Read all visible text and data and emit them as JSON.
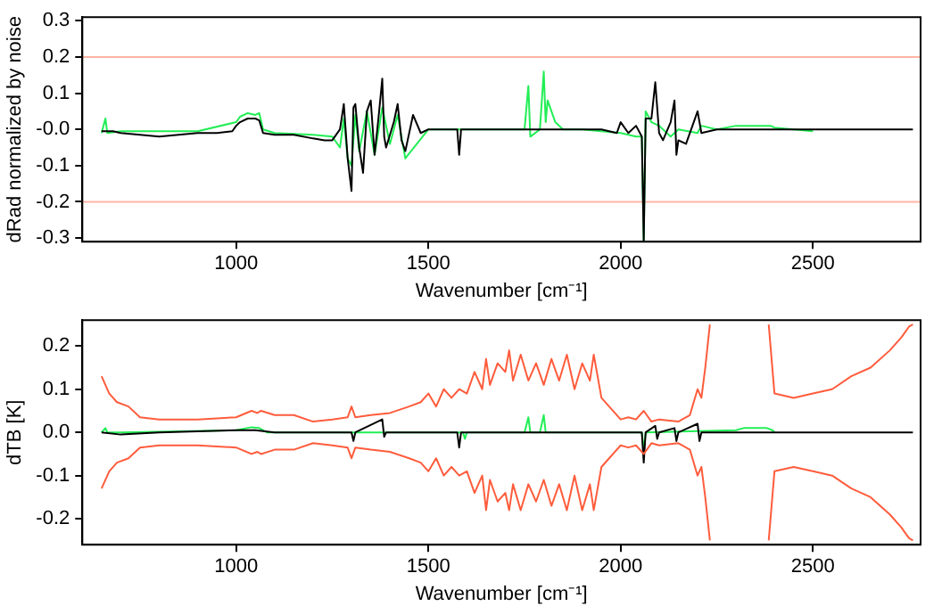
{
  "chart_data": [
    {
      "type": "line",
      "xlabel": "Wavenumber [cm⁻¹]",
      "ylabel": "dRad normalized by noise",
      "xlim": [
        600,
        2780
      ],
      "xticks": [
        1000,
        1500,
        2000,
        2500
      ],
      "ylim": [
        -0.31,
        0.31
      ],
      "yticks": [
        -0.3,
        -0.2,
        -0.1,
        {
          "value": 0,
          "label": "-0.0"
        },
        0.1,
        0.2,
        0.3
      ],
      "ref_lines": [
        {
          "axis": "y",
          "value": 0.2,
          "color": "#ffb4a4"
        },
        {
          "axis": "y",
          "value": -0.2,
          "color": "#ffb4a4"
        }
      ],
      "series": [
        {
          "color": "#000000",
          "x": [
            650,
            680,
            700,
            750,
            800,
            850,
            900,
            950,
            990,
            1000,
            1010,
            1030,
            1050,
            1060,
            1070,
            1100,
            1150,
            1200,
            1230,
            1250,
            1270,
            1280,
            1290,
            1300,
            1305,
            1310,
            1320,
            1330,
            1340,
            1350,
            1360,
            1370,
            1380,
            1385,
            1390,
            1410,
            1420,
            1430,
            1440,
            1460,
            1480,
            1500,
            1550,
            1575,
            1580,
            1585,
            1600,
            1700,
            1800,
            1900,
            1950,
            1990,
            2000,
            2020,
            2040,
            2055,
            2060,
            2065,
            2080,
            2090,
            2100,
            2110,
            2130,
            2140,
            2145,
            2150,
            2170,
            2190,
            2200,
            2210,
            2250,
            2300,
            2400,
            2500,
            2600,
            2700,
            2760
          ],
          "values": [
            -0.005,
            -0.005,
            -0.01,
            -0.015,
            -0.02,
            -0.015,
            -0.01,
            -0.01,
            -0.005,
            0.01,
            0.02,
            0.03,
            0.03,
            0.025,
            -0.01,
            -0.015,
            -0.015,
            -0.025,
            -0.03,
            -0.03,
            0.0,
            0.07,
            -0.08,
            -0.17,
            0.06,
            0.07,
            -0.05,
            -0.12,
            0.05,
            0.08,
            -0.07,
            0.03,
            0.14,
            -0.02,
            -0.05,
            0.02,
            0.07,
            -0.03,
            -0.06,
            0.04,
            -0.01,
            0.0,
            0.0,
            0.0,
            -0.07,
            0.0,
            0.0,
            0.0,
            0.0,
            0.0,
            0.0,
            -0.01,
            0.02,
            -0.01,
            0.01,
            -0.02,
            -0.31,
            0.03,
            0.03,
            0.13,
            -0.01,
            -0.03,
            0.02,
            0.08,
            -0.07,
            -0.03,
            -0.04,
            0.02,
            0.05,
            -0.01,
            0.0,
            0.0,
            0.0,
            0.0,
            0.0,
            0.0,
            0.0
          ]
        },
        {
          "color": "#22ee55",
          "x": [
            650,
            660,
            665,
            700,
            800,
            900,
            1000,
            1010,
            1030,
            1050,
            1060,
            1070,
            1100,
            1200,
            1250,
            1270,
            1280,
            1290,
            1300,
            1310,
            1320,
            1340,
            1360,
            1380,
            1400,
            1420,
            1440,
            1500,
            1560,
            1600,
            1700,
            1750,
            1760,
            1765,
            1790,
            1800,
            1805,
            1810,
            1830,
            1850,
            1900,
            1950,
            2000,
            2040,
            2055,
            2060,
            2065,
            2080,
            2100,
            2130,
            2150,
            2200,
            2210,
            2250,
            2300,
            2350,
            2390,
            2400,
            2500
          ],
          "values": [
            -0.01,
            0.03,
            -0.01,
            -0.005,
            -0.005,
            -0.005,
            0.02,
            0.035,
            0.045,
            0.04,
            0.045,
            0.0,
            -0.01,
            -0.015,
            -0.02,
            -0.05,
            0.03,
            -0.08,
            -0.1,
            0.04,
            -0.06,
            0.05,
            -0.07,
            0.06,
            -0.04,
            0.04,
            -0.08,
            0.0,
            0.0,
            0.0,
            0.0,
            0.0,
            0.12,
            -0.02,
            0.0,
            0.16,
            0.02,
            0.08,
            0.02,
            0.0,
            0.0,
            -0.005,
            -0.01,
            -0.02,
            -0.02,
            -0.31,
            0.05,
            0.02,
            0.01,
            -0.02,
            0.0,
            -0.01,
            0.01,
            0.0,
            0.01,
            0.01,
            0.01,
            0.005,
            -0.005
          ]
        }
      ]
    },
    {
      "type": "line",
      "xlabel": "Wavenumber [cm⁻¹]",
      "ylabel": "dTB [K]",
      "xlim": [
        600,
        2780
      ],
      "xticks": [
        1000,
        1500,
        2000,
        2500
      ],
      "ylim": [
        -0.26,
        0.26
      ],
      "yticks": [
        -0.2,
        -0.1,
        {
          "value": 0,
          "label": "0.0"
        },
        0.1,
        0.2
      ],
      "series": [
        {
          "color": "#ff5c3c",
          "x": [
            650,
            670,
            690,
            720,
            750,
            800,
            900,
            1000,
            1040,
            1055,
            1065,
            1100,
            1150,
            1200,
            1250,
            1290,
            1300,
            1310,
            1350,
            1400,
            1450,
            1480,
            1500,
            1520,
            1540,
            1560,
            1580,
            1600,
            1620,
            1640,
            1650,
            1660,
            1680,
            1700,
            1710,
            1720,
            1740,
            1760,
            1780,
            1800,
            1820,
            1840,
            1860,
            1880,
            1900,
            1920,
            1930,
            1950,
            1970,
            2000,
            2020,
            2040,
            2060,
            2080,
            2100,
            2150,
            2180,
            2200,
            2210,
            2220,
            2232,
            2300,
            2385,
            2400,
            2450,
            2500,
            2550,
            2600,
            2650,
            2700,
            2730,
            2750,
            2760
          ],
          "values": [
            0.13,
            0.09,
            0.07,
            0.06,
            0.035,
            0.03,
            0.03,
            0.035,
            0.05,
            0.045,
            0.05,
            0.04,
            0.04,
            0.025,
            0.03,
            0.035,
            0.06,
            0.035,
            0.04,
            0.045,
            0.06,
            0.07,
            0.09,
            0.06,
            0.1,
            0.08,
            0.1,
            0.09,
            0.14,
            0.1,
            0.17,
            0.11,
            0.16,
            0.14,
            0.19,
            0.12,
            0.18,
            0.12,
            0.16,
            0.11,
            0.17,
            0.12,
            0.18,
            0.1,
            0.16,
            0.12,
            0.18,
            0.08,
            0.06,
            0.03,
            0.035,
            0.03,
            0.05,
            0.025,
            0.03,
            0.025,
            0.04,
            0.1,
            0.08,
            0.15,
            0.25,
            null,
            0.25,
            0.09,
            0.08,
            0.09,
            0.1,
            0.13,
            0.15,
            0.19,
            0.22,
            0.245,
            0.25
          ]
        },
        {
          "color": "#ff5c3c",
          "x": [
            650,
            670,
            690,
            720,
            750,
            800,
            900,
            1000,
            1040,
            1055,
            1065,
            1100,
            1150,
            1200,
            1250,
            1290,
            1300,
            1310,
            1350,
            1400,
            1450,
            1480,
            1500,
            1520,
            1540,
            1560,
            1580,
            1600,
            1620,
            1640,
            1650,
            1660,
            1680,
            1700,
            1710,
            1720,
            1740,
            1760,
            1780,
            1800,
            1820,
            1840,
            1860,
            1880,
            1900,
            1920,
            1930,
            1950,
            1970,
            2000,
            2020,
            2040,
            2060,
            2080,
            2100,
            2150,
            2180,
            2200,
            2210,
            2220,
            2232,
            2300,
            2385,
            2400,
            2450,
            2500,
            2550,
            2600,
            2650,
            2700,
            2730,
            2750,
            2760
          ],
          "values": [
            -0.13,
            -0.09,
            -0.07,
            -0.06,
            -0.035,
            -0.03,
            -0.03,
            -0.035,
            -0.05,
            -0.045,
            -0.05,
            -0.04,
            -0.04,
            -0.025,
            -0.03,
            -0.035,
            -0.06,
            -0.035,
            -0.04,
            -0.045,
            -0.06,
            -0.07,
            -0.09,
            -0.06,
            -0.1,
            -0.08,
            -0.1,
            -0.09,
            -0.14,
            -0.1,
            -0.18,
            -0.11,
            -0.16,
            -0.14,
            -0.18,
            -0.12,
            -0.18,
            -0.12,
            -0.16,
            -0.11,
            -0.17,
            -0.12,
            -0.18,
            -0.1,
            -0.18,
            -0.12,
            -0.18,
            -0.08,
            -0.06,
            -0.03,
            -0.035,
            -0.03,
            -0.05,
            -0.025,
            -0.03,
            -0.025,
            -0.04,
            -0.1,
            -0.08,
            -0.15,
            -0.25,
            null,
            -0.25,
            -0.09,
            -0.08,
            -0.09,
            -0.1,
            -0.13,
            -0.15,
            -0.19,
            -0.22,
            -0.245,
            -0.25
          ]
        },
        {
          "color": "#000000",
          "x": [
            650,
            700,
            800,
            1000,
            1050,
            1100,
            1300,
            1305,
            1310,
            1380,
            1385,
            1390,
            1500,
            1575,
            1580,
            1585,
            1700,
            1800,
            2000,
            2055,
            2060,
            2065,
            2090,
            2095,
            2100,
            2140,
            2145,
            2150,
            2200,
            2205,
            2210,
            2400,
            2600,
            2760
          ],
          "values": [
            0,
            -0.005,
            0,
            0.005,
            0.005,
            0,
            0,
            -0.02,
            0,
            0.03,
            -0.01,
            0,
            0,
            0,
            -0.035,
            0,
            0,
            0,
            0,
            0,
            -0.07,
            0,
            0.015,
            -0.015,
            0,
            0.01,
            -0.02,
            0,
            0.02,
            -0.02,
            0,
            0,
            0,
            0
          ]
        },
        {
          "color": "#22ee55",
          "x": [
            650,
            660,
            665,
            700,
            1000,
            1040,
            1060,
            1080,
            1500,
            1590,
            1595,
            1600,
            1750,
            1760,
            1765,
            1790,
            1800,
            1805,
            1900,
            2055,
            2060,
            2065,
            2300,
            2320,
            2380,
            2395,
            2400
          ],
          "values": [
            0,
            0.01,
            0,
            0,
            0.005,
            0.012,
            0.01,
            0,
            0,
            0,
            -0.015,
            0,
            0,
            0.035,
            0,
            0,
            0.04,
            0,
            0,
            0,
            -0.04,
            0,
            0.005,
            0.01,
            0.01,
            0.005,
            0
          ]
        }
      ]
    }
  ]
}
